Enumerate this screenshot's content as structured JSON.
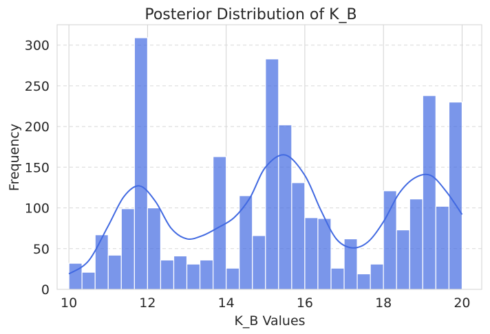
{
  "chart_data": {
    "type": "bar",
    "title": "Posterior Distribution of K_B",
    "xlabel": "K_B Values",
    "ylabel": "Frequency",
    "xlim": [
      9.7,
      20.5
    ],
    "ylim": [
      0,
      325
    ],
    "xticks": [
      10,
      12,
      14,
      16,
      18,
      20
    ],
    "yticks": [
      0,
      50,
      100,
      150,
      200,
      250,
      300
    ],
    "grid": true,
    "bin_edges": [
      10.0,
      10.333,
      10.667,
      11.0,
      11.333,
      11.667,
      12.0,
      12.333,
      12.667,
      13.0,
      13.333,
      13.667,
      14.0,
      14.333,
      14.667,
      15.0,
      15.333,
      15.667,
      16.0,
      16.333,
      16.667,
      17.0,
      17.333,
      17.667,
      18.0,
      18.333,
      18.667,
      19.0,
      19.333,
      19.667,
      20.0
    ],
    "values": [
      32,
      21,
      67,
      42,
      99,
      309,
      100,
      36,
      41,
      31,
      36,
      163,
      26,
      115,
      66,
      283,
      202,
      131,
      88,
      87,
      26,
      62,
      19,
      31,
      121,
      73,
      111,
      238,
      102,
      230
    ],
    "kde": {
      "x": [
        10.0,
        10.5,
        11.0,
        11.4,
        11.8,
        12.2,
        12.6,
        13.0,
        13.4,
        13.8,
        14.2,
        14.6,
        15.0,
        15.5,
        16.0,
        16.4,
        16.8,
        17.2,
        17.6,
        18.0,
        18.4,
        18.8,
        19.2,
        19.6,
        20.0
      ],
      "y": [
        19,
        35,
        78,
        114,
        127,
        108,
        75,
        62,
        66,
        76,
        88,
        112,
        150,
        165,
        140,
        98,
        62,
        51,
        58,
        83,
        118,
        137,
        140,
        120,
        92
      ]
    },
    "colors": {
      "bar": "#4169e1",
      "kde": "#4169e1"
    }
  }
}
